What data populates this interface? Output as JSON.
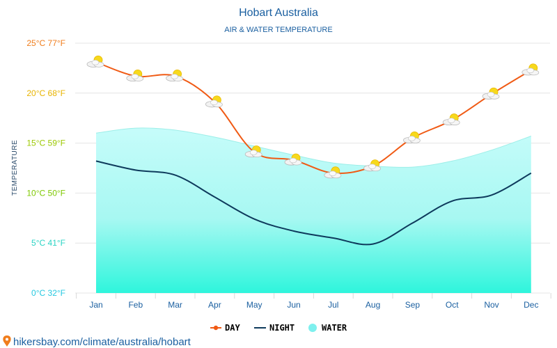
{
  "chart_data": {
    "type": "line",
    "title": "Hobart Australia",
    "subtitle": "AIR & WATER TEMPERATURE",
    "ylabel": "TEMPERATURE",
    "ylim": [
      0,
      25
    ],
    "grid": true,
    "legend_position": "bottom",
    "categories": [
      "Jan",
      "Feb",
      "Mar",
      "Apr",
      "May",
      "Jun",
      "Jul",
      "Aug",
      "Sep",
      "Oct",
      "Nov",
      "Dec"
    ],
    "yticks": [
      {
        "value": 25,
        "label": "25°C 77°F",
        "color": "#f07d1c"
      },
      {
        "value": 20,
        "label": "20°C 68°F",
        "color": "#e8b400"
      },
      {
        "value": 15,
        "label": "15°C 59°F",
        "color": "#9cc800"
      },
      {
        "value": 10,
        "label": "10°C 50°F",
        "color": "#7ec800"
      },
      {
        "value": 5,
        "label": "5°C 41°F",
        "color": "#2ad4c4"
      },
      {
        "value": 0,
        "label": "0°C 32°F",
        "color": "#24c8e0"
      }
    ],
    "series": [
      {
        "name": "DAY",
        "color": "#f05a14",
        "values": [
          23.1,
          21.7,
          21.7,
          19.1,
          14.1,
          13.3,
          12.0,
          12.7,
          15.5,
          17.3,
          19.9,
          22.3
        ]
      },
      {
        "name": "NIGHT",
        "color": "#0e3a5c",
        "values": [
          13.2,
          12.3,
          11.8,
          9.6,
          7.4,
          6.2,
          5.5,
          4.9,
          7.0,
          9.2,
          9.8,
          12.0
        ]
      },
      {
        "name": "WATER",
        "color": "#7ef0ee",
        "values": [
          16.0,
          16.5,
          16.3,
          15.6,
          14.7,
          13.8,
          13.0,
          12.7,
          12.6,
          13.2,
          14.3,
          15.7
        ]
      }
    ]
  },
  "footer": {
    "credit": "hikersbay.com/climate/australia/hobart"
  },
  "colors": {
    "title": "#1a5fa0",
    "subtitle": "#1a5fa0",
    "axis_label": "#2a4a6a",
    "x_tick": "#1a5fa0",
    "grid": "#e4e4e4",
    "credit": "#1a5fa0",
    "pin": "#f07d1c"
  }
}
